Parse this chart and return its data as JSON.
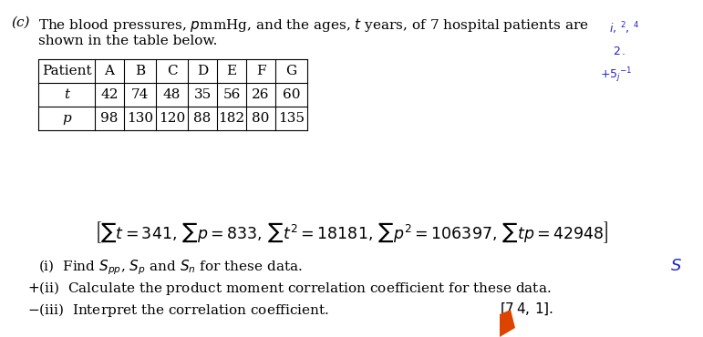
{
  "part_label": "(c)",
  "intro_line1": "The blood pressures, $p$mmHg, and the ages, $t$ years, of 7 hospital patients are",
  "intro_line2": "shown in the table below.",
  "table_headers": [
    "Patient",
    "A",
    "B",
    "C",
    "D",
    "E",
    "F",
    "G"
  ],
  "row_t_label": "t",
  "row_p_label": "p",
  "row_t_values": [
    "42",
    "74",
    "48",
    "35",
    "56",
    "26",
    "60"
  ],
  "row_p_values": [
    "98",
    "130",
    "120",
    "88",
    "182",
    "80",
    "135"
  ],
  "bg_color": "#ffffff",
  "text_color": "#000000",
  "font_size_main": 11.0,
  "font_size_table": 11.0,
  "handwritten_color": "#2222cc",
  "orange_color": "#dd4400"
}
